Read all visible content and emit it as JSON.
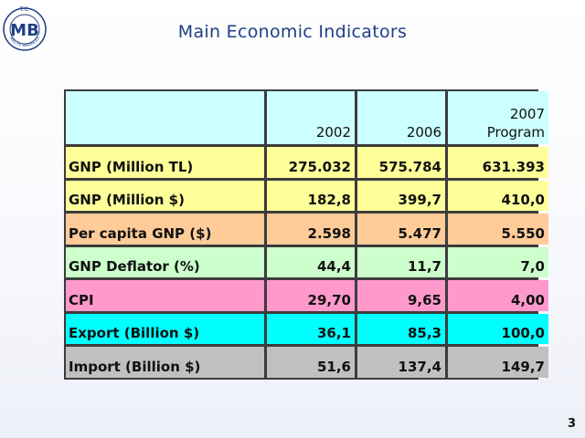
{
  "logo": {
    "top_text": "T.C.",
    "initials": "MB",
    "bottom_text": "MALİYE BAKANLIĞI"
  },
  "title": "Main Economic Indicators",
  "table": {
    "header": [
      "",
      "2002",
      "2006",
      "2007 Program"
    ],
    "header_color": "#ccffff",
    "rows": [
      {
        "label": "GNP  (Million TL)",
        "values": [
          "275.032",
          "575.784",
          "631.393"
        ],
        "color": "#ffff99"
      },
      {
        "label": "GNP (Million $)",
        "values": [
          "182,8",
          "399,7",
          "410,0"
        ],
        "color": "#ffff99"
      },
      {
        "label": "Per capita GNP ($)",
        "values": [
          "2.598",
          "5.477",
          "5.550"
        ],
        "color": "#ffcc99"
      },
      {
        "label": "GNP Deflator (%)",
        "values": [
          "44,4",
          "11,7",
          "7,0"
        ],
        "color": "#ccffcc"
      },
      {
        "label": "CPI",
        "values": [
          "29,70",
          "9,65",
          "4,00"
        ],
        "color": "#ff99cc"
      },
      {
        "label": "Export (Billion $)",
        "values": [
          "36,1",
          "85,3",
          "100,0"
        ],
        "color": "#00ffff"
      },
      {
        "label": "Import (Billion $)",
        "values": [
          "51,6",
          "137,4",
          "149,7"
        ],
        "color": "#c0c0c0"
      }
    ]
  },
  "page_number": "3"
}
